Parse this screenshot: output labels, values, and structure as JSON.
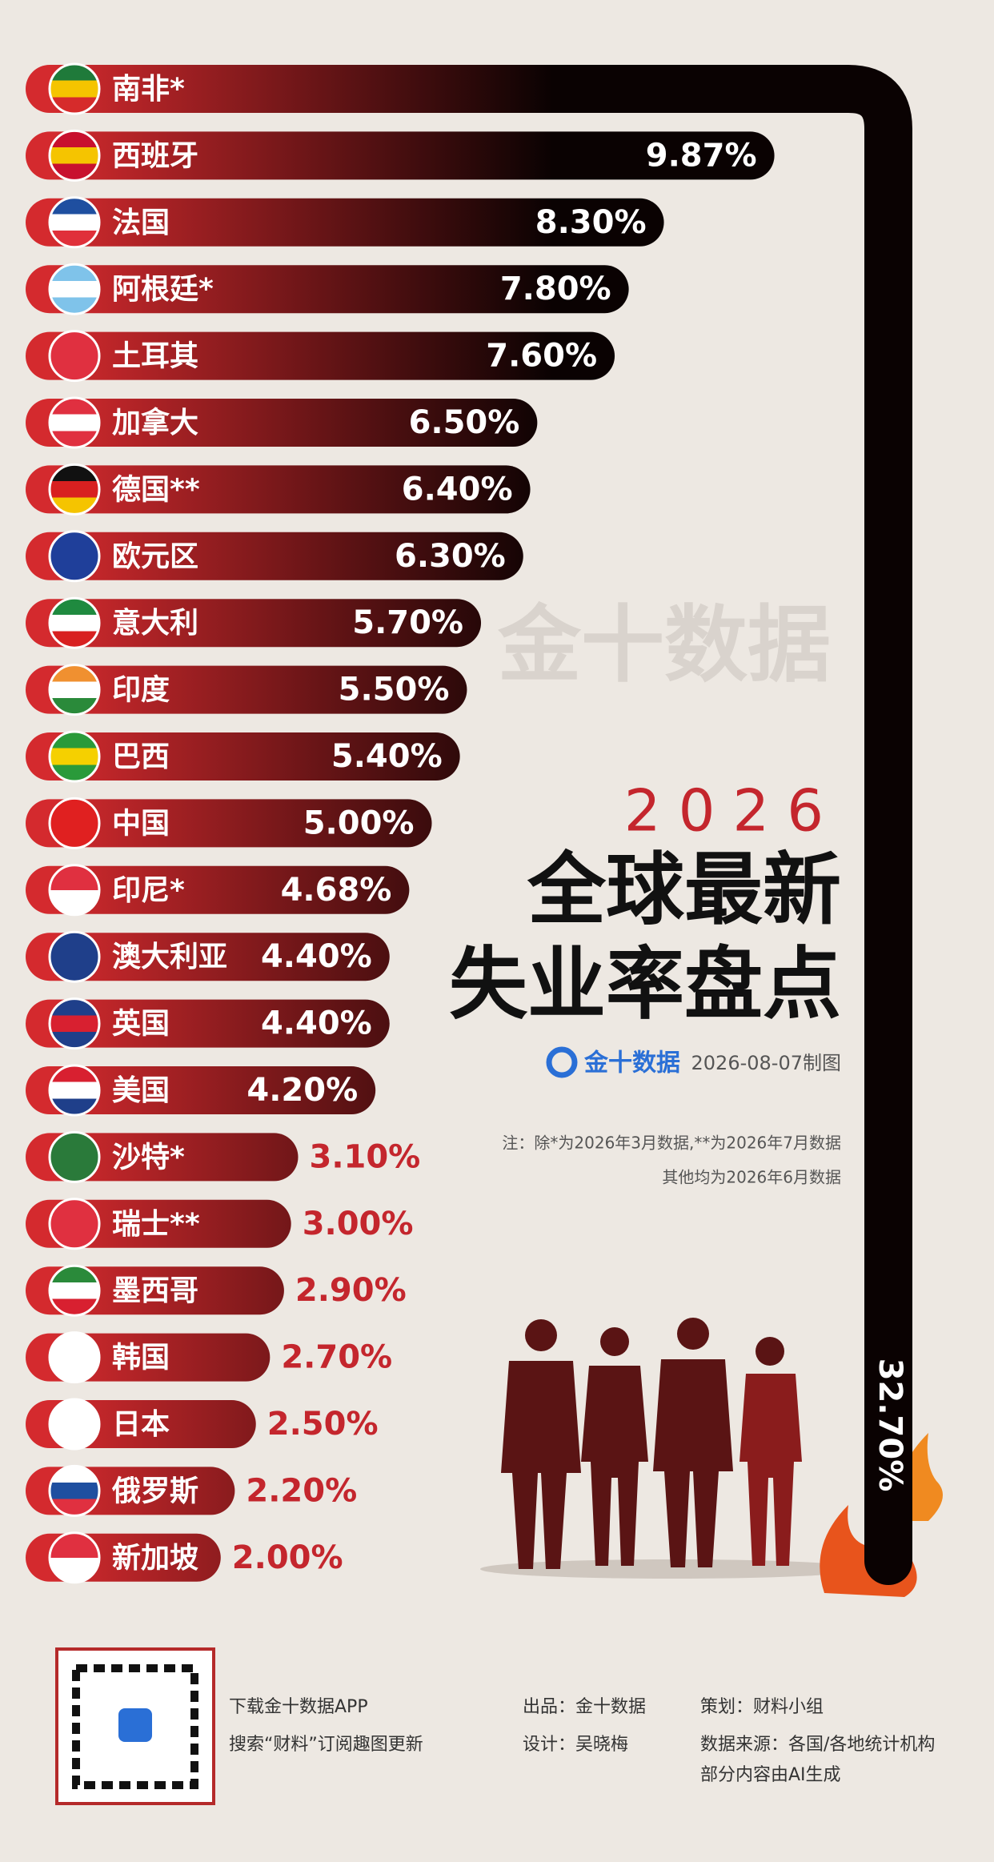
{
  "chart_data": {
    "type": "bar",
    "kicker": "2026",
    "title_lines": [
      "全球最新",
      "失业率盘点"
    ],
    "brand": "金十数据",
    "date_note": "2026-08-07制图",
    "notes": [
      "注：除*为2026年3月数据,**为2026年7月数据",
      "其他均为2026年6月数据"
    ],
    "watermark": "金十数据",
    "categories": [
      "南非*",
      "西班牙",
      "法国",
      "阿根廷*",
      "土耳其",
      "加拿大",
      "德国**",
      "欧元区",
      "意大利",
      "印度",
      "巴西",
      "中国",
      "印尼*",
      "澳大利亚",
      "英国",
      "美国",
      "沙特*",
      "瑞士**",
      "墨西哥",
      "韩国",
      "日本",
      "俄罗斯",
      "新加坡"
    ],
    "values": [
      32.7,
      9.87,
      8.3,
      7.8,
      7.6,
      6.5,
      6.4,
      6.3,
      5.7,
      5.5,
      5.4,
      5.0,
      4.68,
      4.4,
      4.4,
      4.2,
      3.1,
      3.0,
      2.9,
      2.7,
      2.5,
      2.2,
      2.0
    ],
    "value_labels": [
      "32.70%",
      "9.87%",
      "8.30%",
      "7.80%",
      "7.60%",
      "6.50%",
      "6.40%",
      "6.30%",
      "5.70%",
      "5.50%",
      "5.40%",
      "5.00%",
      "4.68%",
      "4.40%",
      "4.40%",
      "4.20%",
      "3.10%",
      "3.00%",
      "2.90%",
      "2.70%",
      "2.50%",
      "2.20%",
      "2.00%"
    ],
    "colors": [
      "#d42a2e",
      "#0a0202"
    ]
  },
  "footer": {
    "app": "下载金十数据APP",
    "search": "搜索“财料”订阅趣图更新",
    "producer": "出品：金十数据",
    "designer": "设计：吴晓梅",
    "planner": "策划：财料小组",
    "source": "数据来源：各国/各地统计机构",
    "ai": "部分内容由AI生成"
  }
}
